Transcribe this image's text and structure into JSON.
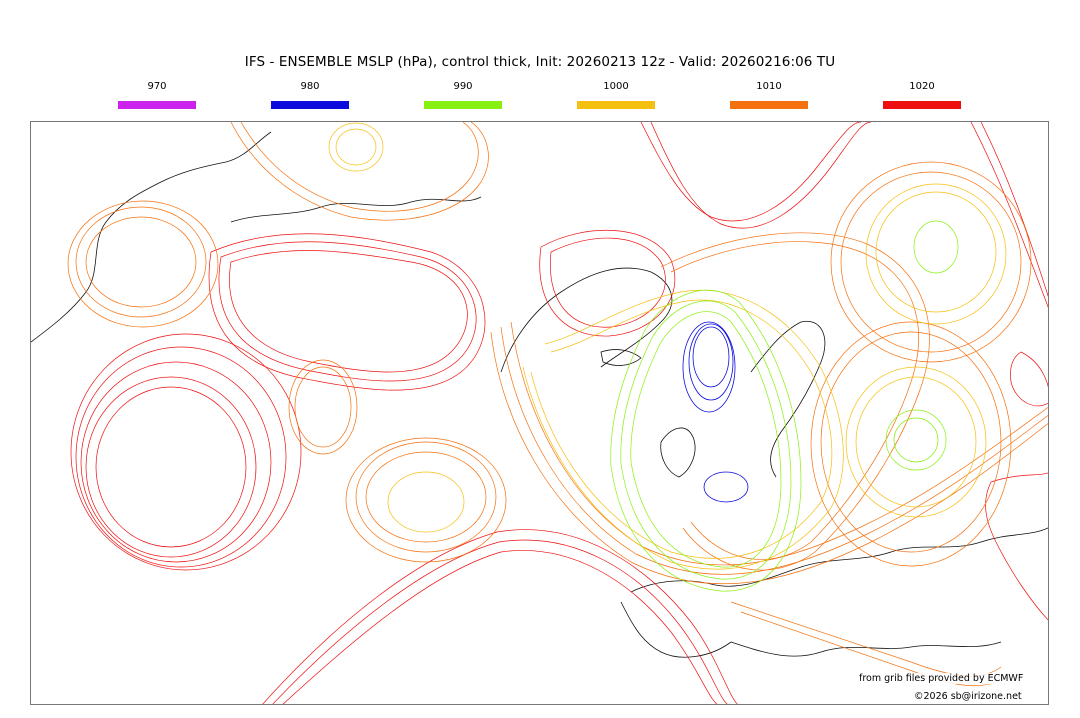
{
  "title": "IFS - ENSEMBLE MSLP (hPa), control thick, Init: 20260213 12z - Valid: 20260216:06 TU",
  "legend": [
    {
      "label": "970",
      "color": "#cc22ee"
    },
    {
      "label": "980",
      "color": "#0b0bdd"
    },
    {
      "label": "990",
      "color": "#88f011"
    },
    {
      "label": "1000",
      "color": "#f5bf0f"
    },
    {
      "label": "1010",
      "color": "#f5700f"
    },
    {
      "label": "1020",
      "color": "#ee0f0f"
    }
  ],
  "credits": {
    "source": "from grib files provided by ECMWF",
    "copyright": "©2026 sb@irizone.net"
  }
}
